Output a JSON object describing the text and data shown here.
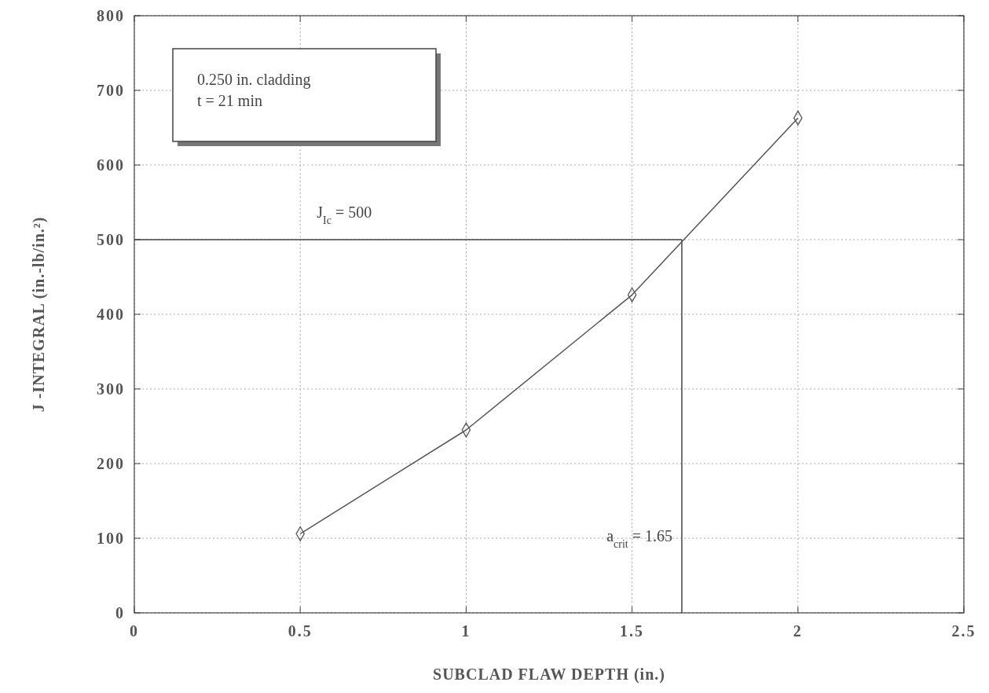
{
  "chart_data": {
    "type": "line",
    "xlabel": "SUBCLAD FLAW DEPTH (in.)",
    "ylabel": "J -INTEGRAL (in.-lb/in.²)",
    "x": [
      0.5,
      1,
      1.5,
      2
    ],
    "series": [
      {
        "color": "#555555",
        "values": [
          106,
          245,
          426,
          663
        ]
      }
    ],
    "marker": "diamond",
    "line_style": "solid",
    "grid": true,
    "xlim": [
      0,
      2.5
    ],
    "xticks": [
      0,
      0.5,
      1,
      1.5,
      2,
      2.5
    ],
    "ylim": [
      0,
      800
    ],
    "yticks": [
      0,
      100,
      200,
      300,
      400,
      500,
      600,
      700,
      800
    ],
    "ref_lines": [
      {
        "axis": "y",
        "value": 500,
        "label": "J$_{Ic}$ = 500",
        "color": "#444444"
      },
      {
        "axis": "x",
        "value": 1.65,
        "label": "a$_{crit}$ = 1.65",
        "color": "#444444"
      }
    ],
    "annotations": [
      "0.250 in. cladding",
      "t = 21 min"
    ]
  }
}
